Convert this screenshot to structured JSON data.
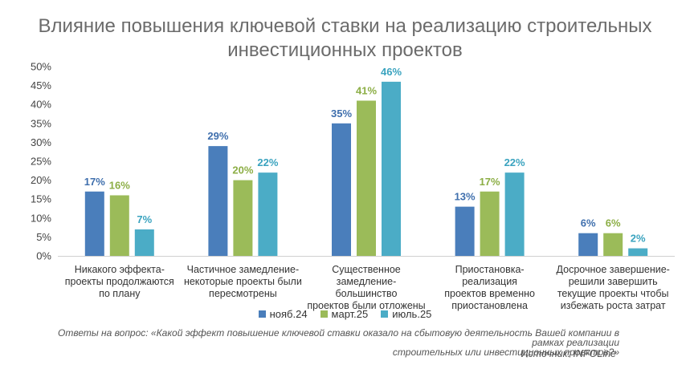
{
  "chart_data": {
    "type": "bar",
    "title_lines": [
      "Влияние повышения ключевой ставки на реализацию строительных",
      "инвестиционных проектов"
    ],
    "categories": [
      [
        "Никакого эффекта-",
        "проекты продолжаются",
        "по плану"
      ],
      [
        "Частичное замедление-",
        "некоторые проекты были",
        "пересмотрены"
      ],
      [
        "Существенное",
        "замедление-большинство",
        "проектов были отложены"
      ],
      [
        "Приостановка-реализация",
        "проектов временно",
        "приостановлена"
      ],
      [
        "Досрочное завершение-",
        "решили завершить",
        "текущие проекты чтобы",
        "избежать роста затрат"
      ]
    ],
    "series": [
      {
        "name": "нояб.24",
        "color": "#4a7ebb",
        "label_color": "#3f6fad",
        "values": [
          17,
          29,
          35,
          13,
          6
        ],
        "labels": [
          "17%",
          "29%",
          "35%",
          "13%",
          "6%"
        ]
      },
      {
        "name": "март.25",
        "color": "#9bbb59",
        "label_color": "#8cae45",
        "values": [
          16,
          20,
          41,
          17,
          6
        ],
        "labels": [
          "16%",
          "20%",
          "41%",
          "17%",
          "6%"
        ]
      },
      {
        "name": "июль.25",
        "color": "#4bacc6",
        "label_color": "#3aa3bf",
        "values": [
          7,
          22,
          46,
          22,
          2
        ],
        "labels": [
          "7%",
          "22%",
          "46%",
          "22%",
          "2%"
        ]
      }
    ],
    "ylim": [
      0,
      50
    ],
    "yticks": [
      "0%",
      "5%",
      "10%",
      "15%",
      "20%",
      "25%",
      "30%",
      "35%",
      "40%",
      "45%",
      "50%"
    ],
    "grid": false,
    "legend_position": "bottom"
  },
  "footnote": {
    "line1": "Ответы на вопрос: «Какой эффект повышение ключевой ставки оказало на сбытовую деятельность Вашей компании в рамках реализации",
    "line2": "строительных или инвестиционных проектов?»"
  },
  "source": "Источник: INFOLine"
}
